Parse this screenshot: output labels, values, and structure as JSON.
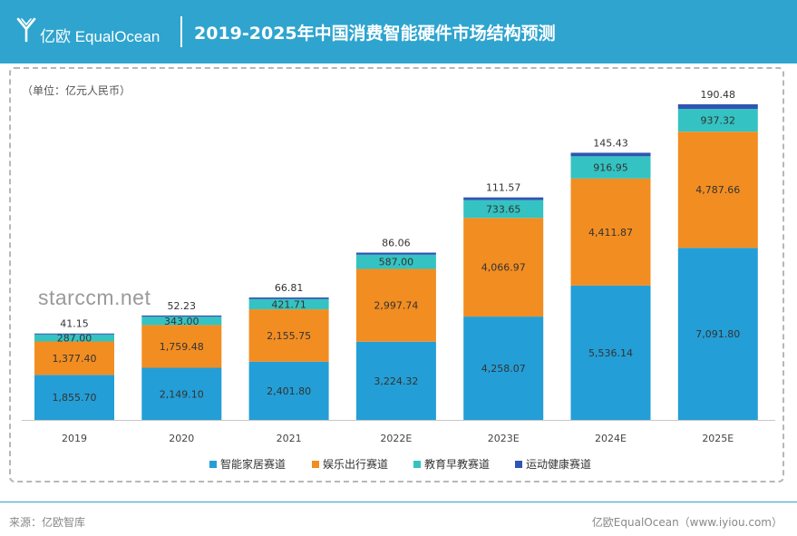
{
  "header": {
    "logo_text": "亿欧 EqualOcean",
    "title": "2019-2025年中国消费智能硬件市场结构预测"
  },
  "watermark": "starccm.net",
  "footer": {
    "source": "来源：亿欧智库",
    "credit": "亿欧EqualOcean（www.iyiou.com）"
  },
  "colors": {
    "header_bg": "#2fa4cf",
    "series": [
      "#249ed6",
      "#f28d21",
      "#34c3c2",
      "#2f55b3"
    ]
  },
  "chart_data": {
    "type": "bar",
    "stacked": true,
    "title": "2019-2025年中国消费智能硬件市场结构预测",
    "unit_label": "（单位：亿元人民币）",
    "categories": [
      "2019",
      "2020",
      "2021",
      "2022E",
      "2023E",
      "2024E",
      "2025E"
    ],
    "series": [
      {
        "name": "智能家居赛道",
        "values": [
          1855.7,
          2149.1,
          2401.8,
          3224.32,
          4258.07,
          5536.14,
          7091.8
        ],
        "labels": [
          "1,855.70",
          "2,149.10",
          "2,401.80",
          "3,224.32",
          "4,258.07",
          "5,536.14",
          "7,091.80"
        ]
      },
      {
        "name": "娱乐出行赛道",
        "values": [
          1377.4,
          1759.48,
          2155.75,
          2997.74,
          4066.97,
          4411.87,
          4787.66
        ],
        "labels": [
          "1,377.40",
          "1,759.48",
          "2,155.75",
          "2,997.74",
          "4,066.97",
          "4,411.87",
          "4,787.66"
        ]
      },
      {
        "name": "教育早教赛道",
        "values": [
          287.0,
          343.0,
          421.71,
          587.0,
          733.65,
          916.95,
          937.32
        ],
        "labels": [
          "287.00",
          "343.00",
          "421.71",
          "587.00",
          "733.65",
          "916.95",
          "937.32"
        ]
      },
      {
        "name": "运动健康赛道",
        "values": [
          41.15,
          52.23,
          66.81,
          86.06,
          111.57,
          145.43,
          190.48
        ],
        "labels": [
          "41.15",
          "52.23",
          "66.81",
          "86.06",
          "111.57",
          "145.43",
          "190.48"
        ]
      }
    ],
    "legend_position": "bottom",
    "grid": false
  }
}
